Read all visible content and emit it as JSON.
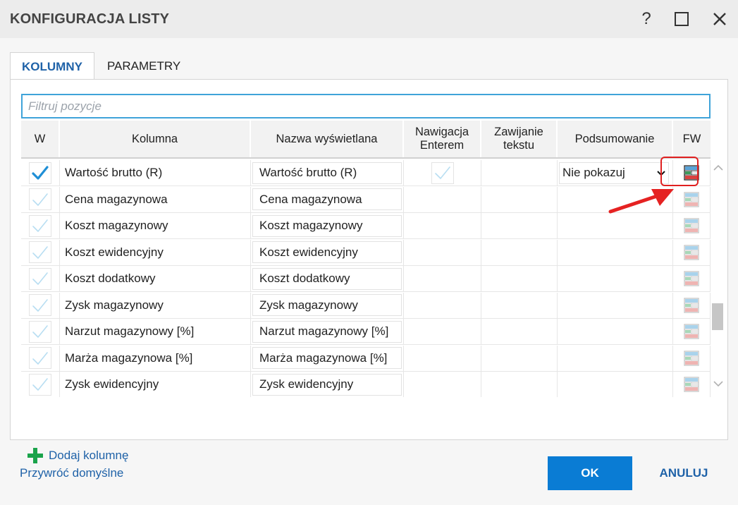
{
  "window": {
    "title": "KONFIGURACJA LISTY",
    "help_label": "?"
  },
  "tabs": [
    {
      "label": "KOLUMNY",
      "active": true
    },
    {
      "label": "PARAMETRY",
      "active": false
    }
  ],
  "filter": {
    "placeholder": "Filtruj pozycje",
    "value": ""
  },
  "columns": {
    "w": "W",
    "kolumna": "Kolumna",
    "nazwa": "Nazwa wyświetlana",
    "nawigacja": "Nawigacja Enterem",
    "zawijanie": "Zawijanie tekstu",
    "podsumowanie": "Podsumowanie",
    "fw": "FW"
  },
  "rows": [
    {
      "column": "Wartość brutto (R)",
      "display_name": "Wartość brutto (R)",
      "w_checked": true,
      "enter_nav_checkbox": true,
      "summary": "Nie pokazuj",
      "selected": true
    },
    {
      "column": "Cena magazynowa",
      "display_name": "Cena magazynowa",
      "w_checked": false
    },
    {
      "column": "Koszt magazynowy",
      "display_name": "Koszt magazynowy",
      "w_checked": false
    },
    {
      "column": "Koszt ewidencyjny",
      "display_name": "Koszt ewidencyjny",
      "w_checked": false
    },
    {
      "column": "Koszt dodatkowy",
      "display_name": "Koszt dodatkowy",
      "w_checked": false
    },
    {
      "column": "Zysk magazynowy",
      "display_name": "Zysk magazynowy",
      "w_checked": false
    },
    {
      "column": "Narzut magazynowy [%]",
      "display_name": "Narzut magazynowy [%]",
      "w_checked": false
    },
    {
      "column": "Marża magazynowa [%]",
      "display_name": "Marża magazynowa [%]",
      "w_checked": false
    },
    {
      "column": "Zysk ewidencyjny",
      "display_name": "Zysk ewidencyjny",
      "w_checked": false
    }
  ],
  "add_column": {
    "label": "Dodaj kolumnę",
    "icon": "plus-icon"
  },
  "footer": {
    "restore_label": "Przywróć domyślne",
    "ok_label": "OK",
    "cancel_label": "ANULUJ"
  },
  "colors": {
    "accent": "#0a7cd4",
    "link": "#1f62a8",
    "check_active": "#1f8fd6",
    "check_inactive": "#b8def2",
    "add_green": "#1aa34a",
    "highlight_red": "#e02020"
  }
}
